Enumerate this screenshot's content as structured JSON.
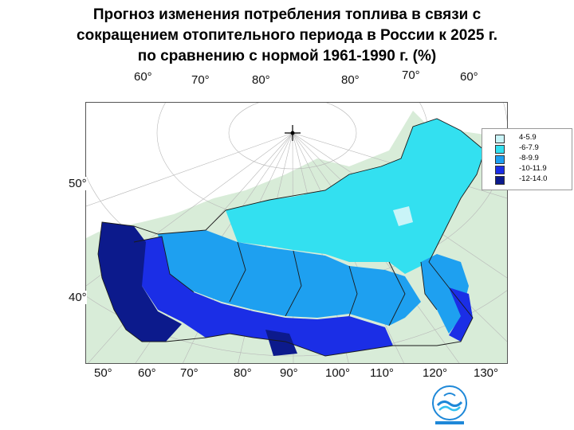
{
  "title": {
    "line1": "Прогноз изменения потребления топлива в связи с",
    "line2": "сокращением отопительного периода в России к 2025 г.",
    "line3": "по сравнению с нормой 1961-1990 г. (%)"
  },
  "top_labels": [
    "60°",
    "70°",
    "80°",
    "80°",
    "70°",
    "60°"
  ],
  "left_labels": [
    "50°",
    "40°"
  ],
  "bottom_labels": [
    "50°",
    "60°",
    "70°",
    "80°",
    "90°",
    "100°",
    "110°",
    "120°",
    "130°"
  ],
  "legend": [
    {
      "label": "4-5.9",
      "color": "#c9f4f8"
    },
    {
      "label": "-6-7.9",
      "color": "#33e0f0"
    },
    {
      "label": "-8-9.9",
      "color": "#1ea0f0"
    },
    {
      "label": "-10-11.9",
      "color": "#1b2ee6"
    },
    {
      "label": "-12-14.0",
      "color": "#0c1a8c"
    }
  ],
  "colors": {
    "land": "#d8ecd8",
    "sea": "#ffffff",
    "grid": "#b8b8b8",
    "border": "#1a1a1a"
  },
  "logo_icon": "hydromet-wave-logo-icon"
}
